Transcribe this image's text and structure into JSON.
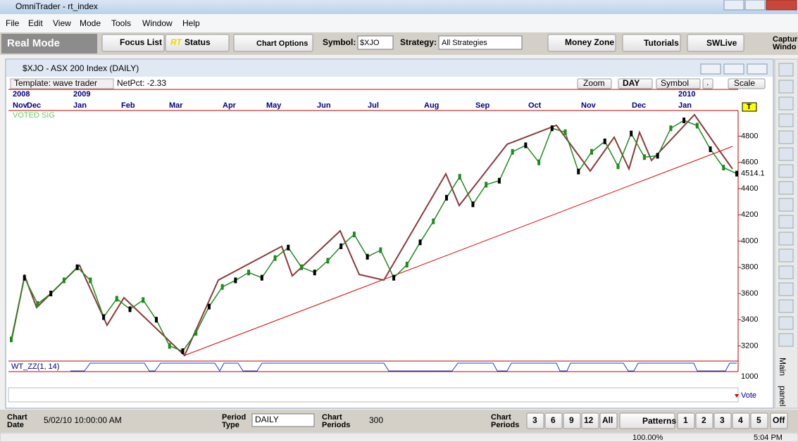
{
  "window": {
    "title": "OmniTrader - rt_index"
  },
  "menu": [
    "File",
    "Edit",
    "View",
    "Mode",
    "Tools",
    "Window",
    "Help"
  ],
  "toolbar": {
    "mode": "Real Mode",
    "focus_list": "Focus List",
    "rt": "RT",
    "status": "Status",
    "chart_options": "Chart Options",
    "symbol_label": "Symbol:",
    "symbol": "$XJO",
    "strategy_label": "Strategy:",
    "strategy": "All Strategies",
    "money_zone": "Money Zone",
    "tutorials": "Tutorials",
    "swlive": "SWLive",
    "capture": [
      "Captur",
      "Windo"
    ]
  },
  "chart_window": {
    "title": "$XJO - ASX 200 Index (DAILY)",
    "template": "Template: wave trader",
    "netpct": "NetPct: -2.33",
    "zoom": "Zoom",
    "period": "DAY",
    "symbol": "Symbol",
    "dot": ".",
    "scale": "Scale"
  },
  "chart_data": {
    "type": "line",
    "years": [
      "2008",
      "2009",
      "2010"
    ],
    "months": [
      "Nov",
      "Dec",
      "Jan",
      "Feb",
      "Mar",
      "Apr",
      "May",
      "Jun",
      "Jul",
      "Aug",
      "Sep",
      "Oct",
      "Nov",
      "Dec",
      "Jan"
    ],
    "voted_sig": "VOTED SIG",
    "marker": "T",
    "values": [
      3250,
      3720,
      3520,
      3600,
      3700,
      3800,
      3700,
      3420,
      3560,
      3480,
      3550,
      3400,
      3200,
      3160,
      3300,
      3500,
      3650,
      3700,
      3760,
      3720,
      3870,
      3950,
      3800,
      3760,
      3850,
      3960,
      4050,
      3880,
      3930,
      3720,
      3820,
      3990,
      4150,
      4330,
      4490,
      4280,
      4430,
      4460,
      4680,
      4730,
      4600,
      4860,
      4830,
      4530,
      4680,
      4760,
      4570,
      4820,
      4640,
      4650,
      4860,
      4920,
      4880,
      4700,
      4560,
      4514.1
    ],
    "color": "#1f8a1f",
    "ylim": [
      3090,
      4990
    ],
    "yticks": [
      3200,
      3400,
      3600,
      3800,
      4000,
      4200,
      4400,
      4600,
      4800
    ],
    "indicator_label": "WT_ZZ(1, 14)",
    "indicator_tick": 1000,
    "vote_label": "Vote"
  },
  "side_tabs": [
    "Main",
    "panel"
  ],
  "bottom_bar": {
    "chart_date_label": [
      "Chart",
      "Date"
    ],
    "chart_date": "5/02/10 10:00:00 AM",
    "period_type_label": [
      "Period",
      "Type"
    ],
    "period_type": "DAILY",
    "chart_periods_label": [
      "Chart",
      "Periods"
    ],
    "chart_periods": "300",
    "chart_periods_label2": [
      "Chart",
      "Periods"
    ],
    "period_buttons": [
      "3",
      "6",
      "9",
      "12",
      "All"
    ],
    "patterns": "Patterns",
    "pages": [
      "1",
      "2",
      "3",
      "4",
      "5",
      "Off"
    ]
  },
  "status_bar": {
    "zoom": "100.00%",
    "time": "5:04 PM"
  }
}
